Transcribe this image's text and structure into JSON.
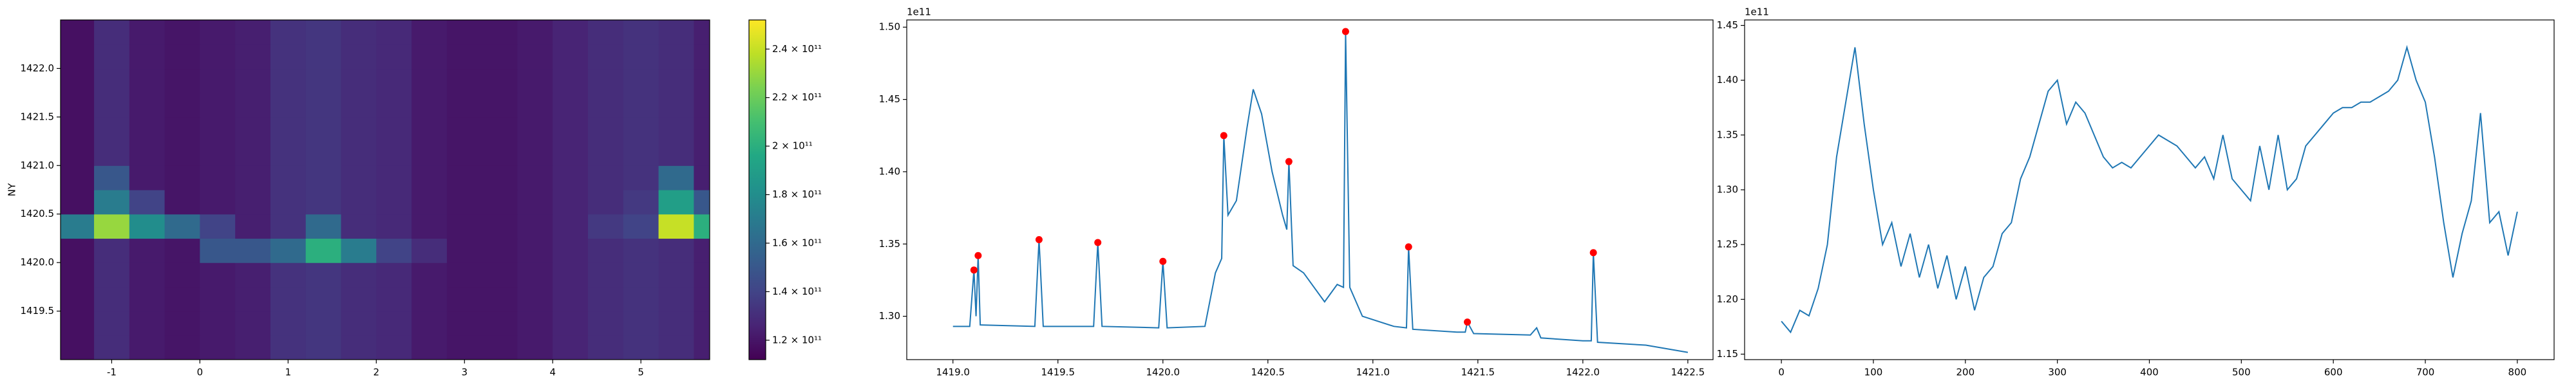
{
  "chart_data": [
    {
      "type": "heatmap",
      "ylabel": "NY",
      "colormap": "viridis",
      "x_edges": [
        -1.58,
        -1.2,
        -0.8,
        -0.4,
        0,
        0.4,
        0.8,
        1.2,
        1.6,
        2,
        2.4,
        2.8,
        3.2,
        3.6,
        4,
        4.4,
        4.8,
        5.2,
        5.6,
        5.78
      ],
      "y_edges": [
        1419,
        1419.25,
        1419.5,
        1419.75,
        1420,
        1420.25,
        1420.5,
        1420.75,
        1421,
        1421.25,
        1421.5,
        1421.75,
        1422,
        1422.25,
        1422.5
      ],
      "z": [
        [
          118000000000.0,
          130000000000.0,
          122000000000.0,
          120000000000.0,
          122000000000.0,
          124000000000.0,
          132000000000.0,
          134000000000.0,
          130000000000.0,
          128000000000.0,
          122000000000.0,
          120000000000.0,
          120000000000.0,
          122000000000.0,
          126000000000.0,
          130000000000.0,
          132000000000.0,
          130000000000.0,
          124000000000.0
        ],
        [
          118000000000.0,
          130000000000.0,
          122000000000.0,
          120000000000.0,
          122000000000.0,
          124000000000.0,
          132000000000.0,
          134000000000.0,
          130000000000.0,
          128000000000.0,
          122000000000.0,
          120000000000.0,
          120000000000.0,
          122000000000.0,
          126000000000.0,
          130000000000.0,
          132000000000.0,
          130000000000.0,
          124000000000.0
        ],
        [
          118000000000.0,
          130000000000.0,
          122000000000.0,
          120000000000.0,
          122000000000.0,
          124000000000.0,
          132000000000.0,
          134000000000.0,
          130000000000.0,
          128000000000.0,
          122000000000.0,
          120000000000.0,
          120000000000.0,
          122000000000.0,
          126000000000.0,
          130000000000.0,
          132000000000.0,
          130000000000.0,
          124000000000.0
        ],
        [
          118000000000.0,
          130000000000.0,
          122000000000.0,
          120000000000.0,
          122000000000.0,
          124000000000.0,
          132000000000.0,
          134000000000.0,
          130000000000.0,
          128000000000.0,
          122000000000.0,
          120000000000.0,
          120000000000.0,
          122000000000.0,
          126000000000.0,
          130000000000.0,
          132000000000.0,
          130000000000.0,
          124000000000.0
        ],
        [
          118000000000.0,
          130000000000.0,
          122000000000.0,
          120000000000.0,
          150000000000.0,
          150000000000.0,
          160000000000.0,
          200000000000.0,
          170000000000.0,
          140000000000.0,
          130000000000.0,
          120000000000.0,
          120000000000.0,
          122000000000.0,
          126000000000.0,
          130000000000.0,
          132000000000.0,
          130000000000.0,
          124000000000.0
        ],
        [
          170000000000.0,
          230000000000.0,
          180000000000.0,
          160000000000.0,
          140000000000.0,
          124000000000.0,
          132000000000.0,
          160000000000.0,
          130000000000.0,
          128000000000.0,
          122000000000.0,
          120000000000.0,
          120000000000.0,
          122000000000.0,
          126000000000.0,
          135000000000.0,
          140000000000.0,
          240000000000.0,
          200000000000.0
        ],
        [
          118000000000.0,
          170000000000.0,
          140000000000.0,
          120000000000.0,
          122000000000.0,
          124000000000.0,
          132000000000.0,
          134000000000.0,
          130000000000.0,
          128000000000.0,
          122000000000.0,
          120000000000.0,
          120000000000.0,
          122000000000.0,
          126000000000.0,
          130000000000.0,
          135000000000.0,
          190000000000.0,
          150000000000.0
        ],
        [
          118000000000.0,
          150000000000.0,
          122000000000.0,
          120000000000.0,
          122000000000.0,
          124000000000.0,
          132000000000.0,
          134000000000.0,
          130000000000.0,
          128000000000.0,
          122000000000.0,
          120000000000.0,
          120000000000.0,
          122000000000.0,
          126000000000.0,
          130000000000.0,
          132000000000.0,
          160000000000.0,
          124000000000.0
        ],
        [
          118000000000.0,
          130000000000.0,
          122000000000.0,
          120000000000.0,
          122000000000.0,
          124000000000.0,
          132000000000.0,
          134000000000.0,
          130000000000.0,
          128000000000.0,
          122000000000.0,
          120000000000.0,
          120000000000.0,
          122000000000.0,
          126000000000.0,
          130000000000.0,
          132000000000.0,
          130000000000.0,
          124000000000.0
        ],
        [
          118000000000.0,
          130000000000.0,
          122000000000.0,
          120000000000.0,
          122000000000.0,
          124000000000.0,
          132000000000.0,
          134000000000.0,
          130000000000.0,
          128000000000.0,
          122000000000.0,
          120000000000.0,
          120000000000.0,
          122000000000.0,
          126000000000.0,
          130000000000.0,
          132000000000.0,
          130000000000.0,
          124000000000.0
        ],
        [
          118000000000.0,
          130000000000.0,
          122000000000.0,
          120000000000.0,
          122000000000.0,
          124000000000.0,
          132000000000.0,
          134000000000.0,
          130000000000.0,
          128000000000.0,
          122000000000.0,
          120000000000.0,
          120000000000.0,
          122000000000.0,
          126000000000.0,
          130000000000.0,
          132000000000.0,
          130000000000.0,
          124000000000.0
        ],
        [
          118000000000.0,
          130000000000.0,
          122000000000.0,
          120000000000.0,
          122000000000.0,
          124000000000.0,
          132000000000.0,
          134000000000.0,
          130000000000.0,
          128000000000.0,
          122000000000.0,
          120000000000.0,
          120000000000.0,
          122000000000.0,
          126000000000.0,
          130000000000.0,
          132000000000.0,
          130000000000.0,
          124000000000.0
        ],
        [
          118000000000.0,
          130000000000.0,
          122000000000.0,
          120000000000.0,
          122000000000.0,
          124000000000.0,
          132000000000.0,
          134000000000.0,
          130000000000.0,
          128000000000.0,
          122000000000.0,
          120000000000.0,
          120000000000.0,
          122000000000.0,
          126000000000.0,
          130000000000.0,
          132000000000.0,
          130000000000.0,
          124000000000.0
        ],
        [
          118000000000.0,
          130000000000.0,
          122000000000.0,
          120000000000.0,
          122000000000.0,
          124000000000.0,
          132000000000.0,
          134000000000.0,
          130000000000.0,
          128000000000.0,
          122000000000.0,
          120000000000.0,
          120000000000.0,
          122000000000.0,
          126000000000.0,
          130000000000.0,
          132000000000.0,
          130000000000.0,
          124000000000.0
        ]
      ],
      "xlim": [
        -1.58,
        5.78
      ],
      "xticks": [
        -1,
        0,
        1,
        2,
        3,
        4,
        5
      ],
      "ylim": [
        1419,
        1422.5
      ],
      "yticks": [
        1419.5,
        {
          "value": 1420,
          "label": "1420.0"
        },
        1420.5,
        {
          "value": 1421,
          "label": "1421.0"
        },
        1421.5,
        {
          "value": 1422,
          "label": "1422.0"
        }
      ],
      "colorbar": {
        "lim": [
          112000000000.0,
          252000000000.0
        ],
        "ticks": [
          {
            "value": 120000000000.0,
            "label": "1.2 × 10¹¹"
          },
          {
            "value": 140000000000.0,
            "label": "1.4 × 10¹¹"
          },
          {
            "value": 160000000000.0,
            "label": "1.6 × 10¹¹"
          },
          {
            "value": 180000000000.0,
            "label": "1.8 × 10¹¹"
          },
          {
            "value": 200000000000.0,
            "label": "2 × 10¹¹"
          },
          {
            "value": 220000000000.0,
            "label": "2.2 × 10¹¹"
          },
          {
            "value": 240000000000.0,
            "label": "2.4 × 10¹¹"
          }
        ]
      }
    },
    {
      "type": "line",
      "color": "#1f77b4",
      "offset_text": "1e11",
      "x": [
        1419.0,
        1419.08,
        1419.1,
        1419.11,
        1419.12,
        1419.13,
        1419.39,
        1419.41,
        1419.43,
        1419.67,
        1419.69,
        1419.71,
        1419.98,
        1420.0,
        1420.02,
        1420.2,
        1420.25,
        1420.28,
        1420.29,
        1420.31,
        1420.35,
        1420.4,
        1420.43,
        1420.47,
        1420.52,
        1420.57,
        1420.59,
        1420.6,
        1420.62,
        1420.67,
        1420.72,
        1420.77,
        1420.83,
        1420.86,
        1420.87,
        1420.89,
        1420.95,
        1421.1,
        1421.16,
        1421.17,
        1421.19,
        1421.4,
        1421.44,
        1421.45,
        1421.48,
        1421.75,
        1421.78,
        1421.8,
        1422.0,
        1422.04,
        1422.05,
        1422.07,
        1422.3,
        1422.5
      ],
      "values": [
        1.293,
        1.293,
        1.332,
        1.3,
        1.342,
        1.294,
        1.293,
        1.353,
        1.293,
        1.293,
        1.351,
        1.293,
        1.292,
        1.338,
        1.292,
        1.293,
        1.33,
        1.34,
        1.425,
        1.37,
        1.38,
        1.43,
        1.457,
        1.44,
        1.4,
        1.37,
        1.36,
        1.407,
        1.335,
        1.33,
        1.32,
        1.31,
        1.322,
        1.32,
        1.497,
        1.32,
        1.3,
        1.293,
        1.292,
        1.348,
        1.291,
        1.289,
        1.289,
        1.296,
        1.288,
        1.287,
        1.292,
        1.285,
        1.283,
        1.283,
        1.344,
        1.282,
        1.28,
        1.275
      ],
      "peaks": {
        "color": "#ff0000",
        "x": [
          1419.1,
          1419.12,
          1419.41,
          1419.69,
          1420.0,
          1420.29,
          1420.6,
          1420.87,
          1421.17,
          1421.45,
          1422.05
        ],
        "values": [
          1.332,
          1.342,
          1.353,
          1.351,
          1.338,
          1.425,
          1.407,
          1.497,
          1.348,
          1.296,
          1.344
        ]
      },
      "xlim": [
        1418.78,
        1422.62
      ],
      "xticks": [
        {
          "value": 1419,
          "label": "1419.0"
        },
        1419.5,
        {
          "value": 1420,
          "label": "1420.0"
        },
        1420.5,
        {
          "value": 1421,
          "label": "1421.0"
        },
        1421.5,
        {
          "value": 1422,
          "label": "1422.0"
        },
        1422.5
      ],
      "ylim": [
        1.27,
        1.505
      ],
      "yticks": [
        {
          "value": 1.3,
          "label": "1.30"
        },
        1.35,
        {
          "value": 1.4,
          "label": "1.40"
        },
        1.45,
        {
          "value": 1.5,
          "label": "1.50"
        }
      ]
    },
    {
      "type": "line",
      "color": "#1f77b4",
      "offset_text": "1e11",
      "x": [
        0,
        10,
        20,
        30,
        40,
        50,
        60,
        70,
        80,
        90,
        100,
        110,
        120,
        130,
        140,
        150,
        160,
        170,
        180,
        190,
        200,
        210,
        220,
        230,
        240,
        250,
        260,
        270,
        280,
        290,
        300,
        310,
        320,
        330,
        340,
        350,
        360,
        370,
        380,
        390,
        400,
        410,
        420,
        430,
        440,
        450,
        460,
        470,
        480,
        490,
        500,
        510,
        520,
        530,
        540,
        550,
        560,
        570,
        580,
        590,
        600,
        610,
        620,
        630,
        640,
        650,
        660,
        670,
        680,
        690,
        700,
        710,
        720,
        730,
        740,
        750,
        760,
        770,
        780,
        790,
        800
      ],
      "values": [
        1.18,
        1.17,
        1.19,
        1.185,
        1.21,
        1.25,
        1.33,
        1.38,
        1.43,
        1.36,
        1.3,
        1.25,
        1.27,
        1.23,
        1.26,
        1.22,
        1.25,
        1.21,
        1.24,
        1.2,
        1.23,
        1.19,
        1.22,
        1.23,
        1.26,
        1.27,
        1.31,
        1.33,
        1.36,
        1.39,
        1.4,
        1.36,
        1.38,
        1.37,
        1.35,
        1.33,
        1.32,
        1.325,
        1.32,
        1.33,
        1.34,
        1.35,
        1.345,
        1.34,
        1.33,
        1.32,
        1.33,
        1.31,
        1.35,
        1.31,
        1.3,
        1.29,
        1.34,
        1.3,
        1.35,
        1.3,
        1.31,
        1.34,
        1.35,
        1.36,
        1.37,
        1.375,
        1.375,
        1.38,
        1.38,
        1.385,
        1.39,
        1.4,
        1.43,
        1.4,
        1.38,
        1.33,
        1.27,
        1.22,
        1.26,
        1.29,
        1.37,
        1.27,
        1.28,
        1.24,
        1.28
      ],
      "xlim": [
        -40,
        840
      ],
      "xticks": [
        0,
        100,
        200,
        300,
        400,
        500,
        600,
        700,
        800
      ],
      "ylim": [
        1.145,
        1.455
      ],
      "yticks": [
        1.15,
        {
          "value": 1.2,
          "label": "1.20"
        },
        1.25,
        {
          "value": 1.3,
          "label": "1.30"
        },
        1.35,
        {
          "value": 1.4,
          "label": "1.40"
        },
        1.45
      ]
    }
  ]
}
